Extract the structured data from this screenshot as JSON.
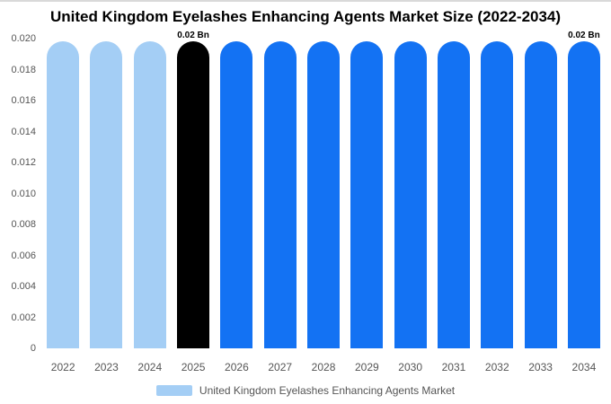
{
  "title": "United Kingdom Eyelashes Enhancing Agents Market Size (2022-2034)",
  "legend": {
    "label": "United Kingdom Eyelashes Enhancing Agents Market",
    "swatch_color": "#a4cef5"
  },
  "colors": {
    "historical": "#a4cef5",
    "base_year": "#000000",
    "forecast": "#1372f3"
  },
  "chart_data": {
    "type": "bar",
    "title": "United Kingdom Eyelashes Enhancing Agents Market Size (2022-2034)",
    "xlabel": "",
    "ylabel": "",
    "categories": [
      "2022",
      "2023",
      "2024",
      "2025",
      "2026",
      "2027",
      "2028",
      "2029",
      "2030",
      "2031",
      "2032",
      "2033",
      "2034"
    ],
    "values": [
      0.0198,
      0.0198,
      0.0198,
      0.0198,
      0.0198,
      0.0198,
      0.0198,
      0.0198,
      0.0198,
      0.0198,
      0.0198,
      0.0198,
      0.0198
    ],
    "bar_colors": [
      "#a4cef5",
      "#a4cef5",
      "#a4cef5",
      "#000000",
      "#1372f3",
      "#1372f3",
      "#1372f3",
      "#1372f3",
      "#1372f3",
      "#1372f3",
      "#1372f3",
      "#1372f3",
      "#1372f3"
    ],
    "annotations": [
      {
        "category": "2025",
        "text": "0.02 Bn"
      },
      {
        "category": "2034",
        "text": "0.02 Bn"
      }
    ],
    "ylim": [
      0,
      0.02
    ],
    "yticks": [
      0,
      0.002,
      0.004,
      0.006,
      0.008,
      0.01,
      0.012,
      0.014,
      0.016,
      0.018,
      0.02
    ],
    "ytick_labels": [
      "0",
      "0.002",
      "0.004",
      "0.006",
      "0.008",
      "0.010",
      "0.012",
      "0.014",
      "0.016",
      "0.018",
      "0.020"
    ],
    "grid": false,
    "legend_position": "bottom",
    "legend_entries": [
      "United Kingdom Eyelashes Enhancing Agents Market"
    ]
  }
}
